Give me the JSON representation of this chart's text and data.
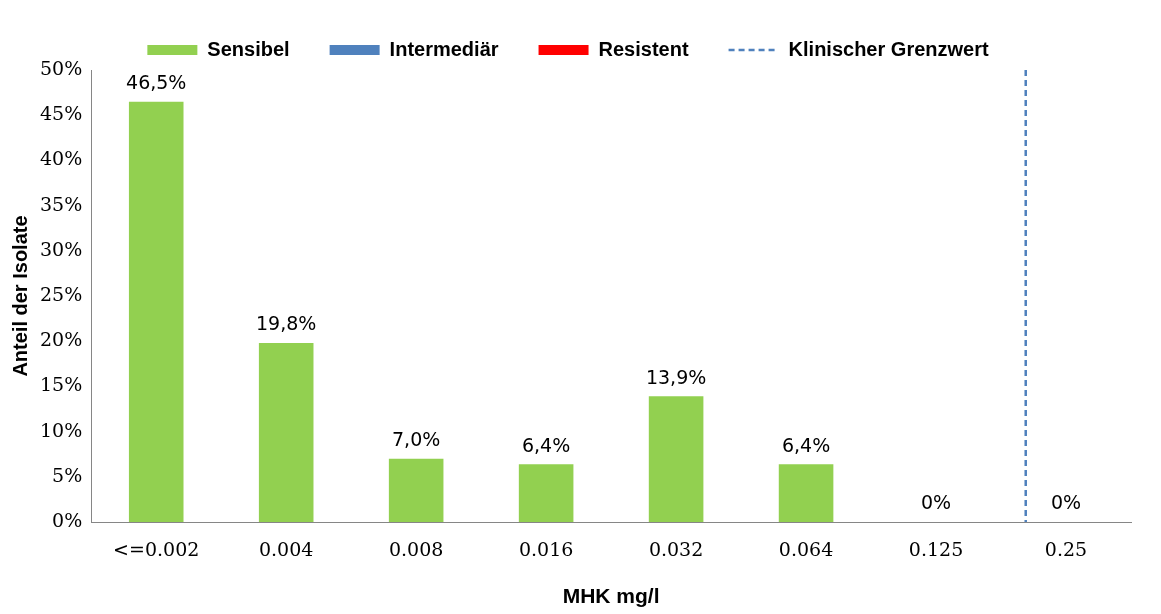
{
  "chart_data": {
    "type": "bar",
    "xlabel": "MHK mg/l",
    "ylabel": "Anteil der Isolate",
    "categories": [
      "<=0.002",
      "0.004",
      "0.008",
      "0.016",
      "0.032",
      "0.064",
      "0.125",
      "0.25"
    ],
    "series": [
      {
        "name": "Sensibel",
        "color": "#92d050",
        "values": [
          46.5,
          19.8,
          7.0,
          6.4,
          13.9,
          6.4,
          0,
          0
        ],
        "value_labels": [
          "46,5%",
          "19,8%",
          "7,0%",
          "6,4%",
          "13,9%",
          "6,4%",
          "0%",
          "0%"
        ]
      },
      {
        "name": "Intermediär",
        "color": "#4f81bd",
        "values": [
          null,
          null,
          null,
          null,
          null,
          null,
          null,
          null
        ]
      },
      {
        "name": "Resistent",
        "color": "#ff0000",
        "values": [
          null,
          null,
          null,
          null,
          null,
          null,
          null,
          null
        ]
      }
    ],
    "ylim": [
      0,
      50
    ],
    "yticks": [
      {
        "value": 0,
        "label": "0%"
      },
      {
        "value": 5,
        "label": "5%"
      },
      {
        "value": 10,
        "label": "10%"
      },
      {
        "value": 15,
        "label": "15%"
      },
      {
        "value": 20,
        "label": "20%"
      },
      {
        "value": 25,
        "label": "25%"
      },
      {
        "value": 30,
        "label": "30%"
      },
      {
        "value": 35,
        "label": "35%"
      },
      {
        "value": 40,
        "label": "40%"
      },
      {
        "value": 45,
        "label": "45%"
      },
      {
        "value": 50,
        "label": "50%"
      }
    ],
    "ref_lines": [
      {
        "axis": "x",
        "value": "0.25",
        "label": "Klinischer Grenzwert",
        "color": "#4f81bd",
        "line_style": "dashed"
      }
    ],
    "grid": false,
    "legend": "top"
  }
}
